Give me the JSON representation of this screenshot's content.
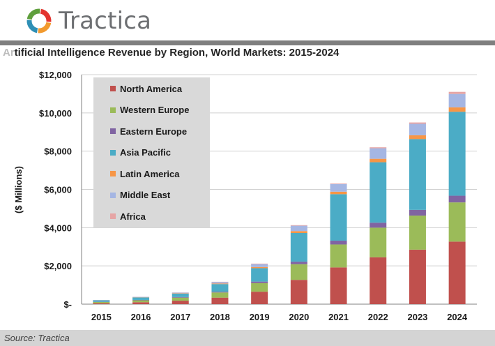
{
  "header": {
    "logo_text": "Tractica",
    "logo_colors": [
      "#e3342f",
      "#f29a2e",
      "#2e8fb5",
      "#5f9f3c"
    ]
  },
  "title": {
    "faint_prefix": "Ar",
    "main": "tificial Intelligence Revenue by Region, World Markets: 2015-2024"
  },
  "footer": {
    "source": "Source: Tractica"
  },
  "chart_data": {
    "type": "bar",
    "stacked": true,
    "title": "Artificial Intelligence Revenue by Region, World Markets: 2015-2024",
    "xlabel": "",
    "ylabel": "($ Millions)",
    "ylim": [
      0,
      12000
    ],
    "yticks": [
      0,
      2000,
      4000,
      6000,
      8000,
      10000,
      12000
    ],
    "ytick_labels": [
      "$-",
      "$2,000",
      "$4,000",
      "$6,000",
      "$8,000",
      "$10,000",
      "$12,000"
    ],
    "categories": [
      "2015",
      "2016",
      "2017",
      "2018",
      "2019",
      "2020",
      "2021",
      "2022",
      "2023",
      "2024"
    ],
    "grid": "horizontal",
    "legend_position": "top-left",
    "series": [
      {
        "name": "North America",
        "color": "#c0504d",
        "values": [
          50,
          100,
          180,
          340,
          650,
          1270,
          1920,
          2450,
          2850,
          3270
        ]
      },
      {
        "name": "Western Europe",
        "color": "#9bbb59",
        "values": [
          60,
          100,
          160,
          270,
          450,
          820,
          1200,
          1550,
          1780,
          2050
        ]
      },
      {
        "name": "Eastern Europe",
        "color": "#8064a2",
        "values": [
          10,
          20,
          30,
          40,
          80,
          130,
          200,
          260,
          300,
          350
        ]
      },
      {
        "name": "Asia Pacific",
        "color": "#4bacc6",
        "values": [
          80,
          130,
          180,
          400,
          700,
          1500,
          2430,
          3160,
          3700,
          4390
        ]
      },
      {
        "name": "Latin America",
        "color": "#f79646",
        "values": [
          5,
          10,
          20,
          30,
          60,
          100,
          130,
          180,
          200,
          230
        ]
      },
      {
        "name": "Middle East",
        "color": "#a5b6e3",
        "values": [
          10,
          20,
          30,
          70,
          150,
          280,
          400,
          550,
          600,
          700
        ]
      },
      {
        "name": "Africa",
        "color": "#e6a5a5",
        "values": [
          5,
          5,
          10,
          20,
          30,
          30,
          30,
          50,
          70,
          110
        ]
      }
    ]
  }
}
